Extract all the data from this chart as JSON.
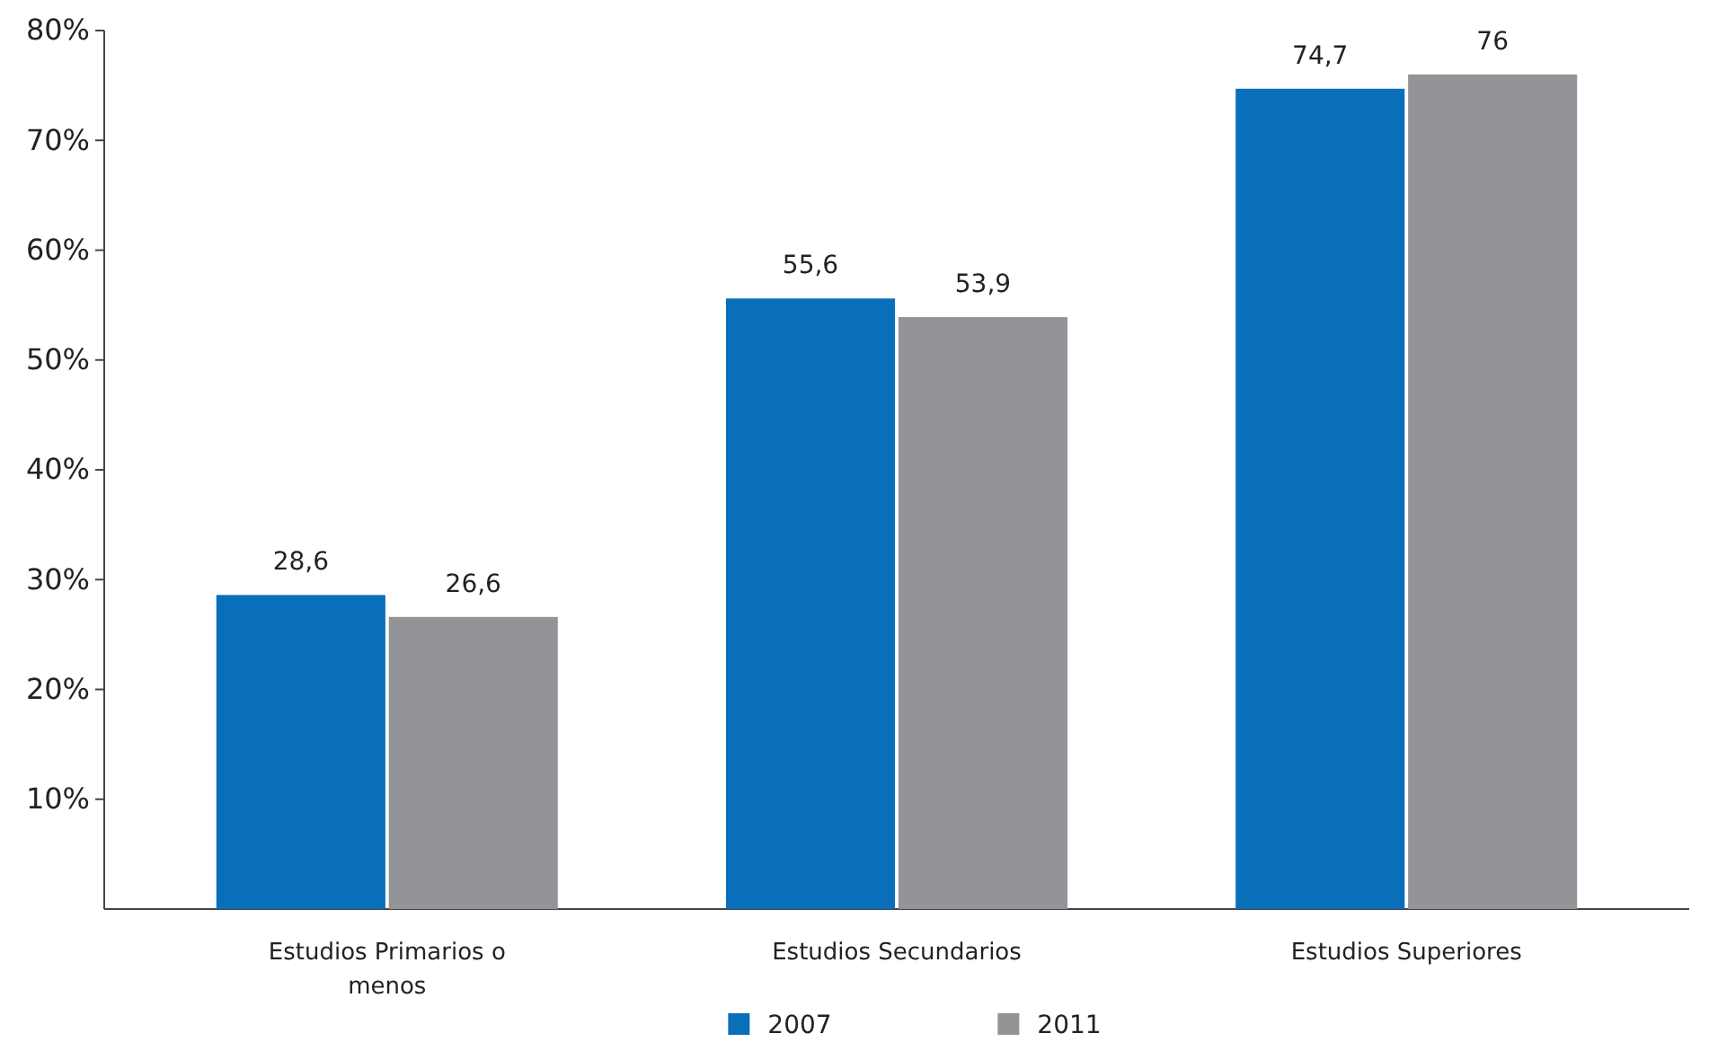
{
  "chart_data": {
    "type": "bar",
    "categories": [
      "Estudios Primarios o menos",
      "Estudios Secundarios",
      "Estudios Superiores"
    ],
    "series": [
      {
        "name": "2007",
        "color": "#0a6fba",
        "values": [
          28.6,
          55.6,
          74.7
        ],
        "value_labels": [
          "28,6",
          "55,6",
          "74,7"
        ]
      },
      {
        "name": "2011",
        "color": "#929497",
        "values": [
          26.6,
          53.9,
          76
        ],
        "value_labels": [
          "26,6",
          "53,9",
          "76"
        ]
      }
    ],
    "ylim": [
      0,
      80
    ],
    "yticks": [
      {
        "value": 10,
        "label": "10%"
      },
      {
        "value": 20,
        "label": "20%"
      },
      {
        "value": 30,
        "label": "30%"
      },
      {
        "value": 40,
        "label": "40%"
      },
      {
        "value": 50,
        "label": "50%"
      },
      {
        "value": 60,
        "label": "60%"
      },
      {
        "value": 70,
        "label": "70%"
      },
      {
        "value": 80,
        "label": "80%"
      }
    ],
    "grid": false,
    "legend": "bottom"
  }
}
